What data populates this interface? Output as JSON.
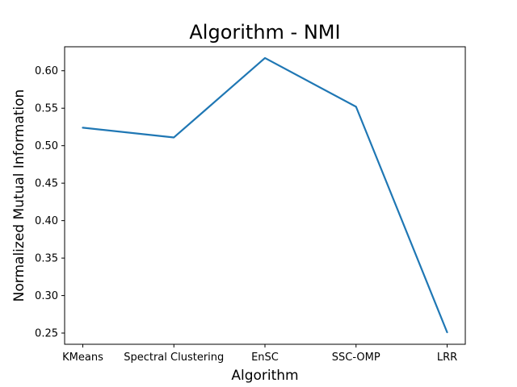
{
  "chart_data": {
    "type": "line",
    "title": "Algorithm - NMI",
    "xlabel": "Algorithm",
    "ylabel": "Normalized Mutual Information",
    "categories": [
      "KMeans",
      "Spectral Clustering",
      "EnSC",
      "SSC-OMP",
      "LRR"
    ],
    "series": [
      {
        "values": [
          0.524,
          0.511,
          0.617,
          0.552,
          0.251
        ],
        "color": "#1f77b4"
      }
    ],
    "ylim": [
      0.235,
      0.632
    ],
    "yticks": [
      "0.25",
      "0.30",
      "0.35",
      "0.40",
      "0.45",
      "0.50",
      "0.55",
      "0.60"
    ],
    "grid": false,
    "legend": "none"
  }
}
